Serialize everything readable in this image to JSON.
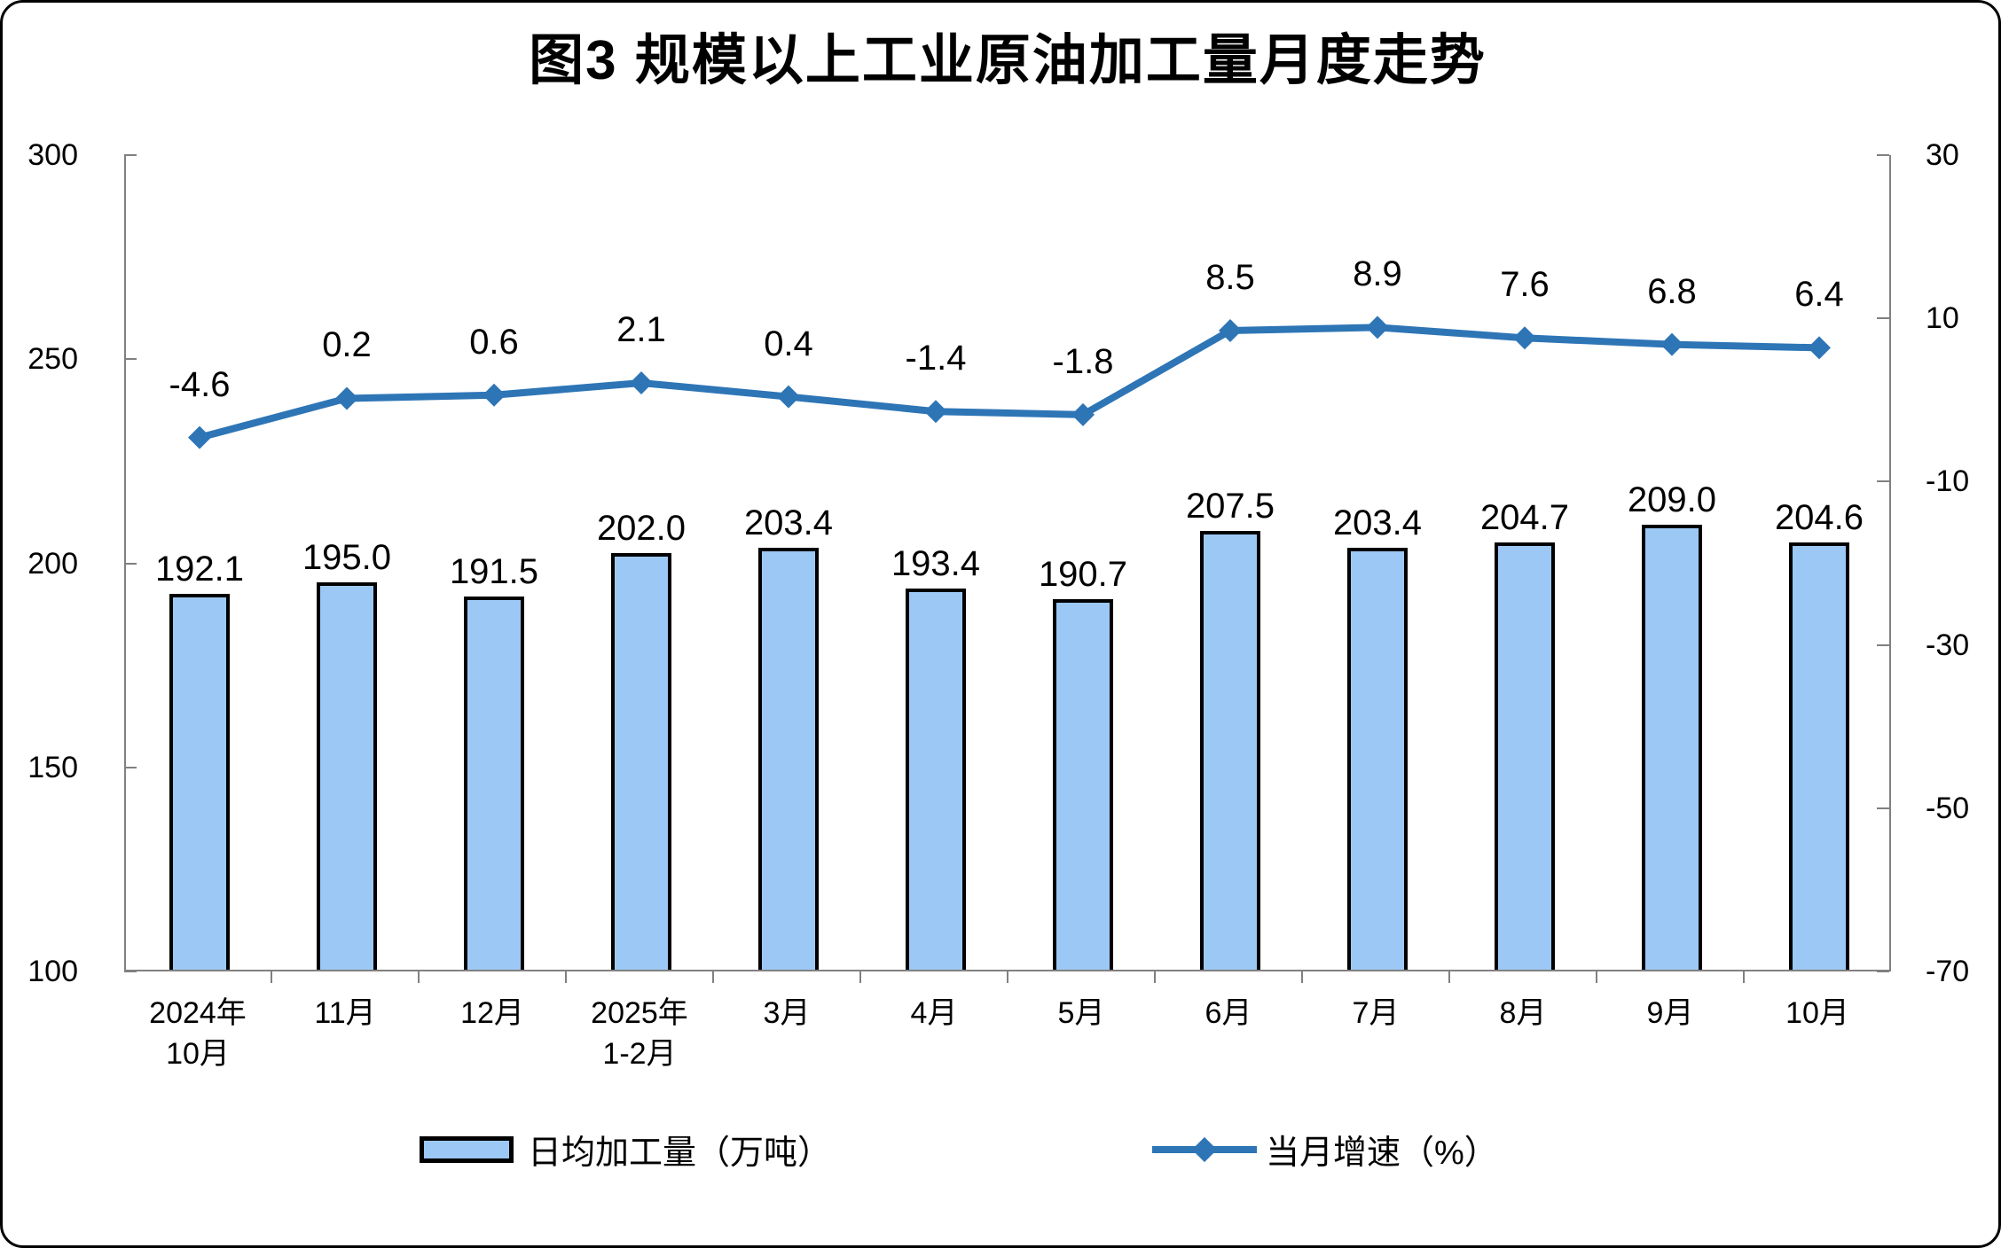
{
  "chart_data": {
    "type": "bar+line",
    "title": "图3 规模以上工业原油加工量月度走势",
    "categories": [
      "2024年\n10月",
      "11月",
      "12月",
      "2025年\n1-2月",
      "3月",
      "4月",
      "5月",
      "6月",
      "7月",
      "8月",
      "9月",
      "10月"
    ],
    "series": [
      {
        "name": "日均加工量（万吨）",
        "type": "bar",
        "axis": "left",
        "values": [
          192.1,
          195.0,
          191.5,
          202.0,
          203.4,
          193.4,
          190.7,
          207.5,
          203.4,
          204.7,
          209.0,
          204.6
        ]
      },
      {
        "name": "当月增速（%）",
        "type": "line",
        "axis": "right",
        "values": [
          -4.6,
          0.2,
          0.6,
          2.1,
          0.4,
          -1.4,
          -1.8,
          8.5,
          8.9,
          7.6,
          6.8,
          6.4
        ]
      }
    ],
    "left_axis": {
      "min": 100,
      "max": 300,
      "tick_labels": [
        "300",
        "250",
        "200",
        "150",
        "100"
      ]
    },
    "right_axis": {
      "min": -70,
      "max": 30,
      "tick_labels": [
        "30",
        "10",
        "-10",
        "-30",
        "-50",
        "-70"
      ]
    },
    "grid": false,
    "legend_position": "bottom",
    "colors": {
      "bar_fill": "#9CC8F5",
      "bar_border": "#000000",
      "line": "#2E75B6",
      "axis": "#808080",
      "text": "#000000"
    },
    "legend": {
      "bar_label": "日均加工量（万吨）",
      "line_label": "当月增速（%）"
    }
  }
}
